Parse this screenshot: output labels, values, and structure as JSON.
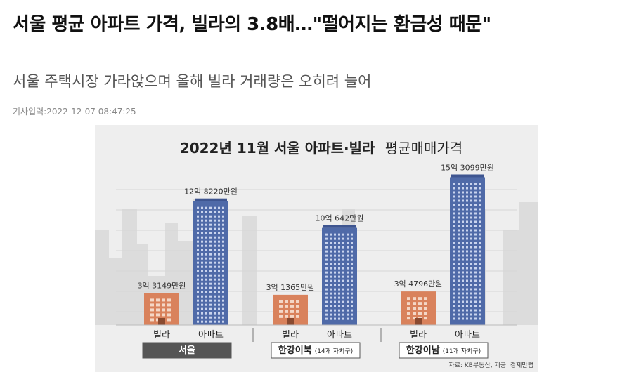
{
  "article": {
    "headline": "서울 평균 아파트 가격, 빌라의 3.8배…\"떨어지는 환금성 때문\"",
    "subheadline": "서울 주택시장 가라앉으며 올해 빌라 거래량은 오히려 늘어",
    "dateline": "기사입력:2022-12-07 08:47:25"
  },
  "colors": {
    "villa": "#d9825c",
    "apartment": "#4f6aa8",
    "background": "#eeeeee",
    "region_dark": "#555555"
  },
  "chart_data": {
    "type": "bar",
    "title": "2022년 11월 서울 아파트·빌라 평균매매가격",
    "title_bold": "2022년 11월 서울 아파트·빌라",
    "title_light": "평균매매가격",
    "unit": "만원",
    "groups": [
      {
        "region": "서울",
        "region_note": "",
        "style": "dark",
        "bars": [
          {
            "category": "빌라",
            "value": 33149,
            "label": "3억 3149만원",
            "kind": "villa"
          },
          {
            "category": "아파트",
            "value": 128220,
            "label": "12억 8220만원",
            "kind": "apartment"
          }
        ]
      },
      {
        "region": "한강이북",
        "region_note": "(14개 자치구)",
        "style": "light",
        "bars": [
          {
            "category": "빌라",
            "value": 31365,
            "label": "3억 1365만원",
            "kind": "villa"
          },
          {
            "category": "아파트",
            "value": 100642,
            "label": "10억 642만원",
            "kind": "apartment"
          }
        ]
      },
      {
        "region": "한강이남",
        "region_note": "(11개 자치구)",
        "style": "light",
        "bars": [
          {
            "category": "빌라",
            "value": 34796,
            "label": "3억 4796만원",
            "kind": "villa"
          },
          {
            "category": "아파트",
            "value": 153099,
            "label": "15억 3099만원",
            "kind": "apartment"
          }
        ]
      }
    ],
    "source": "자료: KB부동산, 제공: 경제만랩"
  }
}
